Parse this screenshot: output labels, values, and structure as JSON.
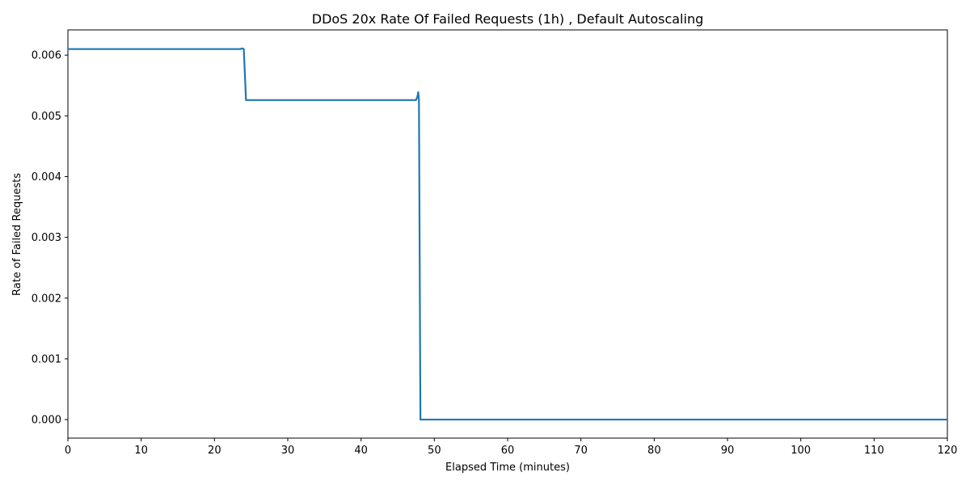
{
  "chart_data": {
    "type": "line",
    "title": "DDoS 20x Rate Of Failed Requests (1h) , Default Autoscaling",
    "xlabel": "Elapsed Time (minutes)",
    "ylabel": "Rate of Failed Requests",
    "xlim": [
      0,
      120
    ],
    "ylim": [
      -0.000305,
      0.006415
    ],
    "xticks": [
      0,
      10,
      20,
      30,
      40,
      50,
      60,
      70,
      80,
      90,
      100,
      110,
      120
    ],
    "xtick_labels": [
      "0",
      "10",
      "20",
      "30",
      "40",
      "50",
      "60",
      "70",
      "80",
      "90",
      "100",
      "110",
      "120"
    ],
    "yticks": [
      0.0,
      0.001,
      0.002,
      0.003,
      0.004,
      0.005,
      0.006
    ],
    "ytick_labels": [
      "0.000",
      "0.001",
      "0.002",
      "0.003",
      "0.004",
      "0.005",
      "0.006"
    ],
    "grid": false,
    "series": [
      {
        "color": "#1f77b4",
        "x": [
          0,
          5,
          10,
          15,
          20,
          23.5,
          23.8,
          24.0,
          24.3,
          30,
          35,
          40,
          45,
          47.5,
          47.7,
          47.8,
          47.9,
          48.1,
          50,
          60,
          70,
          80,
          90,
          100,
          110,
          120
        ],
        "y": [
          0.0061,
          0.0061,
          0.0061,
          0.0061,
          0.0061,
          0.0061,
          0.00611,
          0.0061,
          0.00526,
          0.00526,
          0.00526,
          0.00526,
          0.00526,
          0.00526,
          0.00532,
          0.00539,
          0.00526,
          0.0,
          0.0,
          0.0,
          0.0,
          0.0,
          0.0,
          0.0,
          0.0,
          0.0
        ]
      }
    ]
  }
}
